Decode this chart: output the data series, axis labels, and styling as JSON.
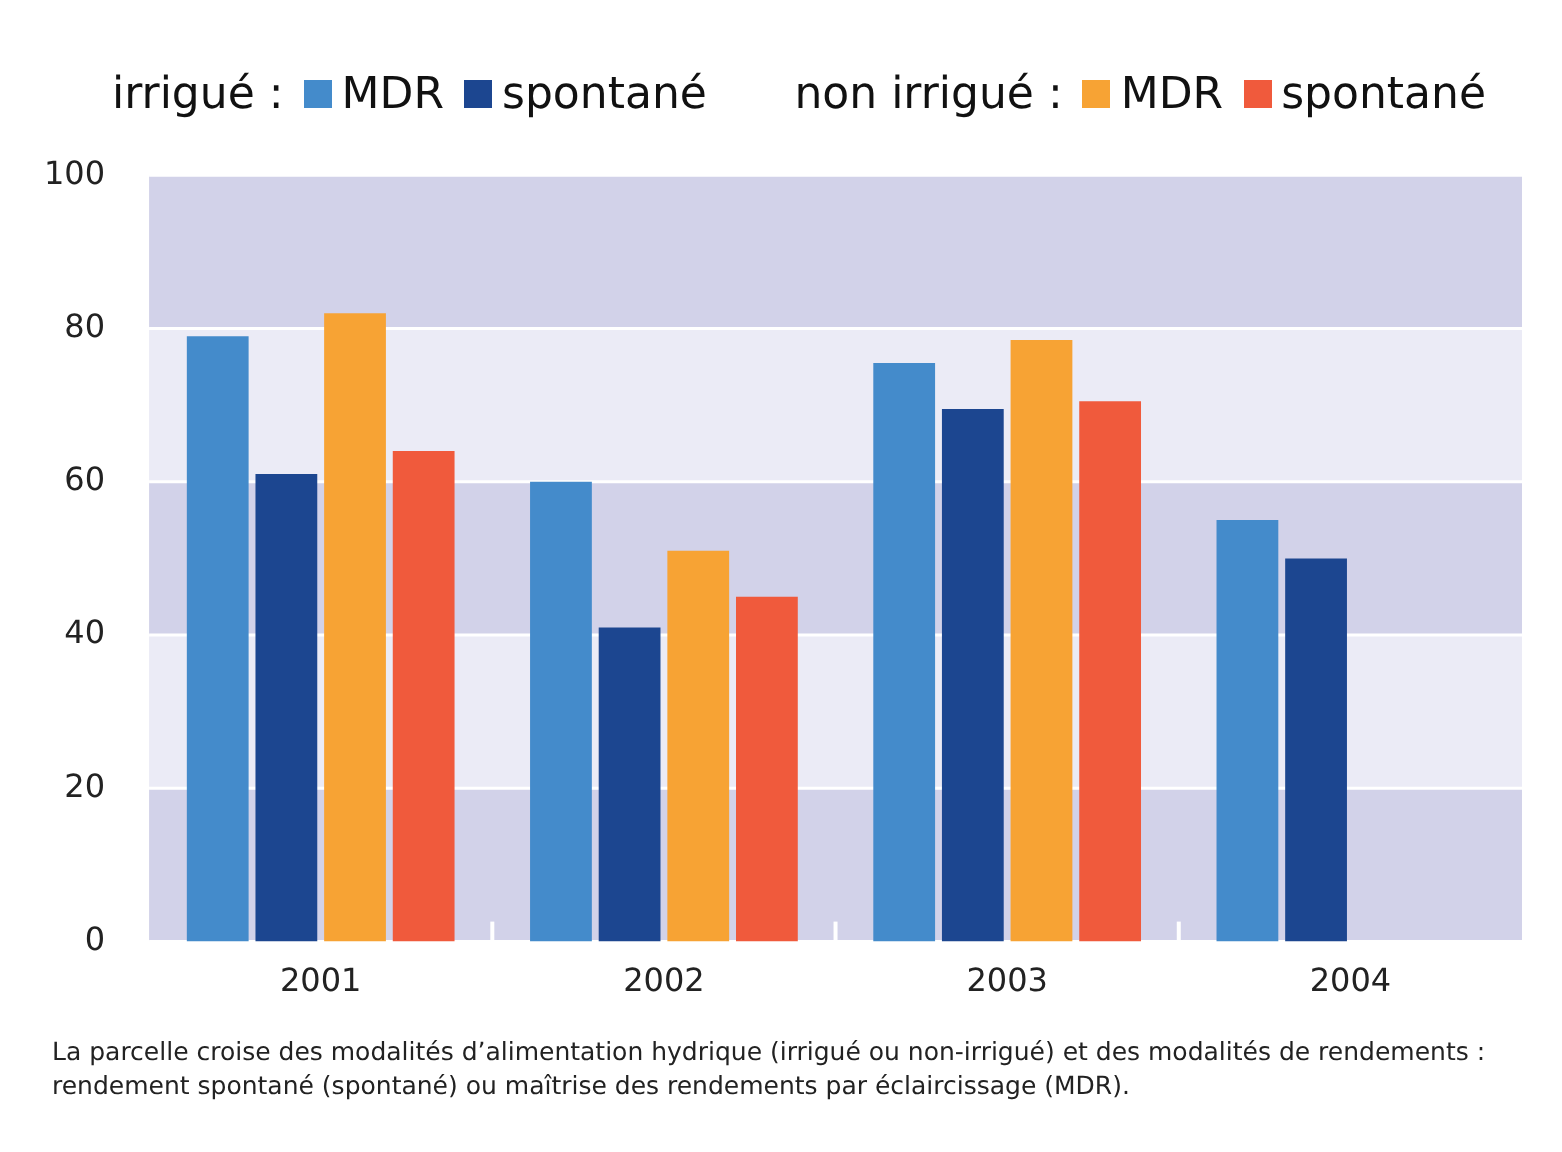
{
  "chart_data": {
    "type": "bar",
    "categories": [
      "2001",
      "2002",
      "2003",
      "2004"
    ],
    "series": [
      {
        "name": "MDR",
        "color": "#448bcb",
        "values": [
          79,
          60,
          75.5,
          55
        ]
      },
      {
        "name": "spontané",
        "color": "#1c4690",
        "values": [
          61,
          41,
          69.5,
          50
        ]
      },
      {
        "name": "MDR",
        "color": "#f7a334",
        "values": [
          82,
          51,
          78.5,
          null
        ]
      },
      {
        "name": "spontané",
        "color": "#f05a3c",
        "values": [
          64,
          45,
          70.5,
          null
        ]
      }
    ],
    "ylim": [
      0,
      100
    ],
    "yticks": [
      0,
      20,
      40,
      60,
      80,
      100
    ],
    "grid": "y",
    "legend": "top",
    "annotations": [
      "irrigué :",
      "non irrigué :",
      "La parcelle croise des modalités d’alimentation hydrique (irrigué ou non-irrigué) et des modalités de rendements : rendement spontané (spontané) ou maîtrise des rendements par éclaircissage (MDR)."
    ]
  }
}
